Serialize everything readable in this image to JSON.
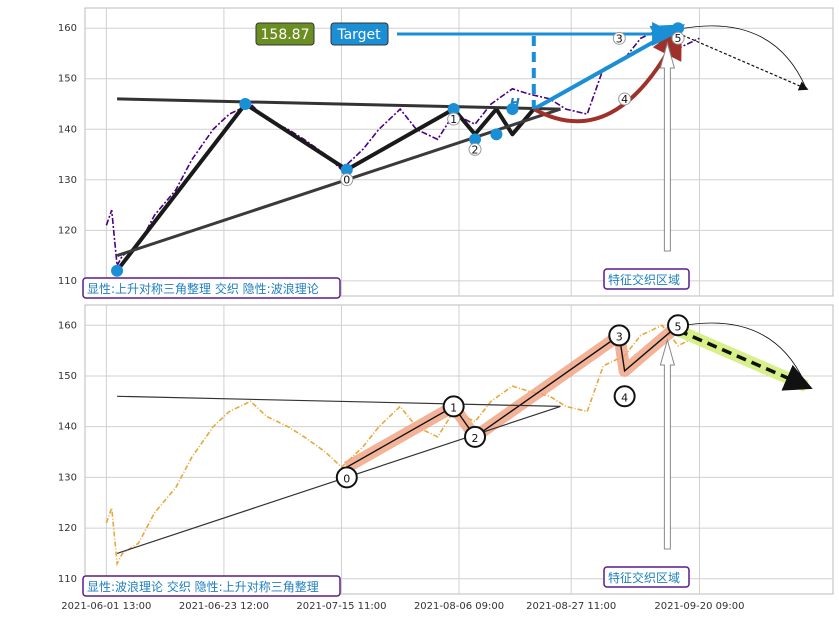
{
  "chart_data": [
    {
      "type": "line",
      "title": "",
      "xlabel": "",
      "ylabel": "",
      "ylim": [
        107,
        164
      ],
      "y_ticks": [
        110,
        120,
        130,
        140,
        150,
        160
      ],
      "grid": true,
      "series": [
        {
          "x": [
            "2021-06-01",
            "2021-06-02",
            "2021-06-03",
            "2021-06-04",
            "2021-06-07",
            "2021-06-08",
            "2021-06-10",
            "2021-06-14",
            "2021-06-17",
            "2021-06-21",
            "2021-06-24",
            "2021-06-28",
            "2021-07-01",
            "2021-07-05",
            "2021-07-08",
            "2021-07-12",
            "2021-07-15",
            "2021-07-19",
            "2021-07-22",
            "2021-07-26",
            "2021-07-29",
            "2021-08-02",
            "2021-08-05",
            "2021-08-09",
            "2021-08-12",
            "2021-08-16",
            "2021-08-19",
            "2021-08-23",
            "2021-08-26",
            "2021-08-30",
            "2021-09-02",
            "2021-09-06",
            "2021-09-09",
            "2021-09-13",
            "2021-09-16",
            "2021-09-20"
          ],
          "values": [
            121,
            124,
            113,
            115,
            117,
            119,
            123,
            128,
            134,
            140,
            143,
            145,
            142,
            140,
            138,
            135,
            132,
            136,
            140,
            144,
            140,
            138,
            143,
            141,
            145,
            148,
            147,
            146,
            144,
            143,
            152,
            154,
            158,
            160,
            156,
            158
          ]
        }
      ],
      "pattern_lines": [
        {
          "style": "thick-black",
          "x": [
            "2021-06-03",
            "2021-06-27",
            "2021-07-16",
            "2021-08-05",
            "2021-08-09",
            "2021-08-13",
            "2021-08-16",
            "2021-08-20"
          ],
          "y": [
            112,
            145,
            132,
            144,
            139,
            144,
            139,
            144
          ]
        },
        {
          "style": "triangle-upper",
          "x": [
            "2021-06-03",
            "2021-08-25"
          ],
          "y": [
            146,
            144
          ]
        },
        {
          "style": "triangle-lower",
          "x": [
            "2021-06-03",
            "2021-08-25"
          ],
          "y": [
            115,
            144
          ]
        },
        {
          "style": "target-arrow",
          "x": [
            "2021-08-20",
            "2021-09-16"
          ],
          "y": [
            144,
            160
          ]
        },
        {
          "style": "curved-arrow",
          "x": [
            "2021-08-20",
            "2021-09-16"
          ],
          "y": [
            144,
            159
          ]
        },
        {
          "style": "projection",
          "x": [
            "2021-09-16",
            "2021-10-10"
          ],
          "y": [
            159,
            148
          ]
        }
      ],
      "markers": [
        {
          "label": "",
          "x": "2021-06-03",
          "y": 112
        },
        {
          "label": "",
          "x": "2021-06-27",
          "y": 145
        },
        {
          "label": "0",
          "x": "2021-07-16",
          "y": 132
        },
        {
          "label": "1",
          "x": "2021-08-05",
          "y": 144
        },
        {
          "label": "2",
          "x": "2021-08-09",
          "y": 138
        },
        {
          "label": "",
          "x": "2021-08-13",
          "y": 139
        },
        {
          "label": "",
          "x": "2021-08-16",
          "y": 144
        },
        {
          "label": "3",
          "x": "2021-09-05",
          "y": 158
        },
        {
          "label": "4",
          "x": "2021-09-06",
          "y": 146
        },
        {
          "label": "5",
          "x": "2021-09-16",
          "y": 160
        }
      ],
      "annotations": {
        "price_badge": "158.87",
        "target_label": "Target",
        "h_label": "H",
        "info_box": "显性:上升对称三角整理 交织 隐性:波浪理论",
        "zone_label": "特征交织区域"
      },
      "colors": {
        "price": "#4b0082",
        "marker": "#1a8fd6",
        "badge": "#6b8e23",
        "target": "#1a8fd6",
        "curve": "#a0302a",
        "info_border": "#5a1a8a",
        "info_text": "#1f7fbf"
      }
    },
    {
      "type": "line",
      "title": "",
      "xlabel": "",
      "ylabel": "",
      "ylim": [
        107,
        164
      ],
      "y_ticks": [
        110,
        120,
        130,
        140,
        150,
        160
      ],
      "grid": true,
      "series": [
        {
          "x": [
            "2021-06-01",
            "2021-06-02",
            "2021-06-03",
            "2021-06-04",
            "2021-06-07",
            "2021-06-08",
            "2021-06-10",
            "2021-06-14",
            "2021-06-17",
            "2021-06-21",
            "2021-06-24",
            "2021-06-28",
            "2021-07-01",
            "2021-07-05",
            "2021-07-08",
            "2021-07-12",
            "2021-07-15",
            "2021-07-19",
            "2021-07-22",
            "2021-07-26",
            "2021-07-29",
            "2021-08-02",
            "2021-08-05",
            "2021-08-09",
            "2021-08-12",
            "2021-08-16",
            "2021-08-19",
            "2021-08-23",
            "2021-08-26",
            "2021-08-30",
            "2021-09-02",
            "2021-09-06",
            "2021-09-09",
            "2021-09-13",
            "2021-09-16",
            "2021-09-20"
          ],
          "values": [
            121,
            124,
            113,
            115,
            117,
            119,
            123,
            128,
            134,
            140,
            143,
            145,
            142,
            140,
            138,
            135,
            132,
            136,
            140,
            144,
            140,
            138,
            143,
            141,
            145,
            148,
            147,
            146,
            144,
            143,
            152,
            154,
            158,
            160,
            156,
            158
          ]
        }
      ],
      "wave_lines": [
        {
          "style": "wave",
          "x": [
            "2021-07-16",
            "2021-08-05",
            "2021-08-09",
            "2021-09-05",
            "2021-09-06",
            "2021-09-16"
          ],
          "y": [
            132,
            144,
            138,
            158,
            151,
            160
          ]
        },
        {
          "style": "triangle-upper",
          "x": [
            "2021-06-03",
            "2021-08-25"
          ],
          "y": [
            146,
            144
          ]
        },
        {
          "style": "triangle-lower",
          "x": [
            "2021-06-03",
            "2021-08-25"
          ],
          "y": [
            115,
            144
          ]
        },
        {
          "style": "projection",
          "x": [
            "2021-09-16",
            "2021-10-10"
          ],
          "y": [
            159,
            148
          ]
        }
      ],
      "markers": [
        {
          "label": "0",
          "x": "2021-07-16",
          "y": 130
        },
        {
          "label": "1",
          "x": "2021-08-05",
          "y": 144
        },
        {
          "label": "2",
          "x": "2021-08-09",
          "y": 138
        },
        {
          "label": "3",
          "x": "2021-09-05",
          "y": 158
        },
        {
          "label": "4",
          "x": "2021-09-06",
          "y": 146
        },
        {
          "label": "5",
          "x": "2021-09-16",
          "y": 160
        }
      ],
      "annotations": {
        "info_box": "显性:波浪理论 交织 隐性:上升对称三角整理",
        "zone_label": "特征交织区域"
      },
      "colors": {
        "price": "#e8a83a",
        "wave_band": "#f0a080",
        "projection_band": "#d7f08a",
        "info_border": "#5a1a8a",
        "info_text": "#1f7fbf"
      }
    }
  ],
  "x_tick_labels": [
    "2021-06-01 13:00",
    "2021-06-23 12:00",
    "2021-07-15 11:00",
    "2021-08-06 09:00",
    "2021-08-27 11:00",
    "2021-09-20 09:00"
  ],
  "x_tick_dates": [
    "2021-06-01",
    "2021-06-23",
    "2021-07-15",
    "2021-08-06",
    "2021-08-27",
    "2021-09-20"
  ],
  "x_range": [
    "2021-05-28",
    "2021-10-15"
  ]
}
